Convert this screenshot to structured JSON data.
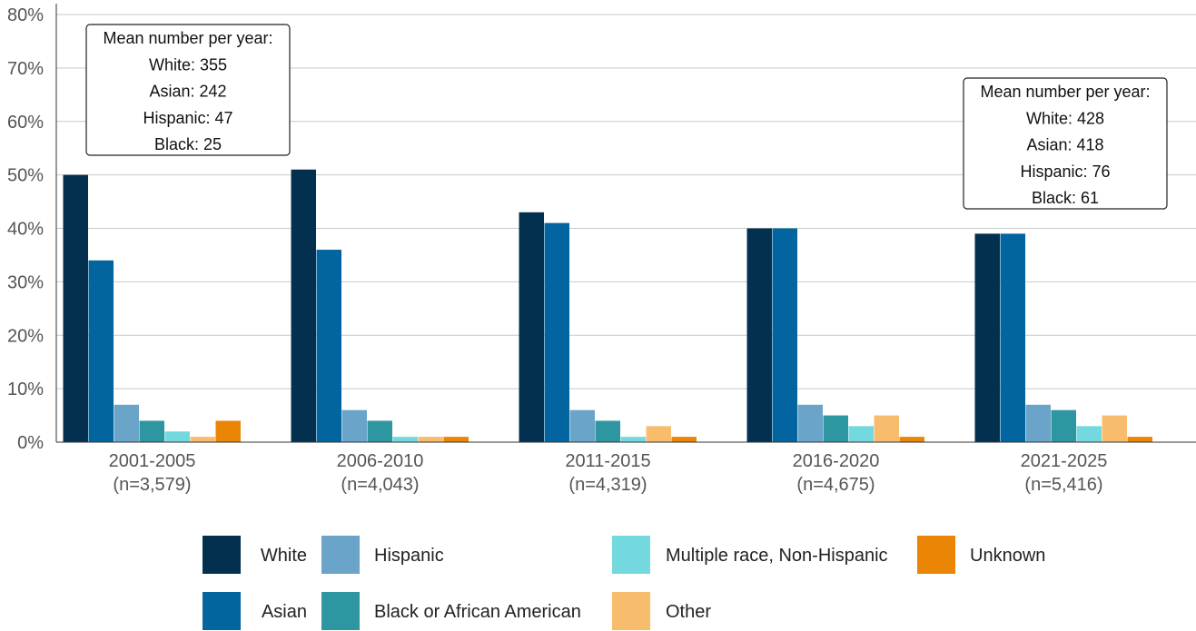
{
  "chart_data": {
    "type": "bar",
    "ylim": [
      0,
      80
    ],
    "yticks": [
      "0%",
      "10%",
      "20%",
      "30%",
      "40%",
      "50%",
      "60%",
      "70%",
      "80%"
    ],
    "grid": true,
    "legend_position": "bottom",
    "categories": [
      {
        "period": "2001-2005",
        "n": "(n=3,579)"
      },
      {
        "period": "2006-2010",
        "n": "(n=4,043)"
      },
      {
        "period": "2011-2015",
        "n": "(n=4,319)"
      },
      {
        "period": "2016-2020",
        "n": "(n=4,675)"
      },
      {
        "period": "2021-2025",
        "n": "(n=5,416)"
      }
    ],
    "series": [
      {
        "name": "White",
        "color": "#04304f",
        "values": [
          50,
          51,
          43,
          40,
          39
        ]
      },
      {
        "name": "Asian",
        "color": "#02659f",
        "values": [
          34,
          36,
          41,
          40,
          39
        ]
      },
      {
        "name": "Hispanic",
        "color": "#6aa4c8",
        "values": [
          7,
          6,
          6,
          7,
          7
        ]
      },
      {
        "name": "Black or African American",
        "color": "#2e96a0",
        "values": [
          4,
          4,
          4,
          5,
          6
        ]
      },
      {
        "name": "Multiple race, Non-Hispanic",
        "color": "#73d9de",
        "values": [
          2,
          1,
          1,
          3,
          3
        ]
      },
      {
        "name": "Other",
        "color": "#f8bd6c",
        "values": [
          1,
          1,
          3,
          5,
          5
        ]
      },
      {
        "name": "Unknown",
        "color": "#ea8506",
        "values": [
          4,
          1,
          1,
          1,
          1
        ]
      }
    ],
    "annotations": [
      {
        "category": "2001-2005",
        "lines": [
          "Mean number per year:",
          "White: 355",
          "Asian: 242",
          "Hispanic: 47",
          "Black: 25"
        ]
      },
      {
        "category": "2021-2025",
        "lines": [
          "Mean number per year:",
          "White: 428",
          "Asian: 418",
          "Hispanic: 76",
          "Black: 61"
        ]
      }
    ]
  }
}
